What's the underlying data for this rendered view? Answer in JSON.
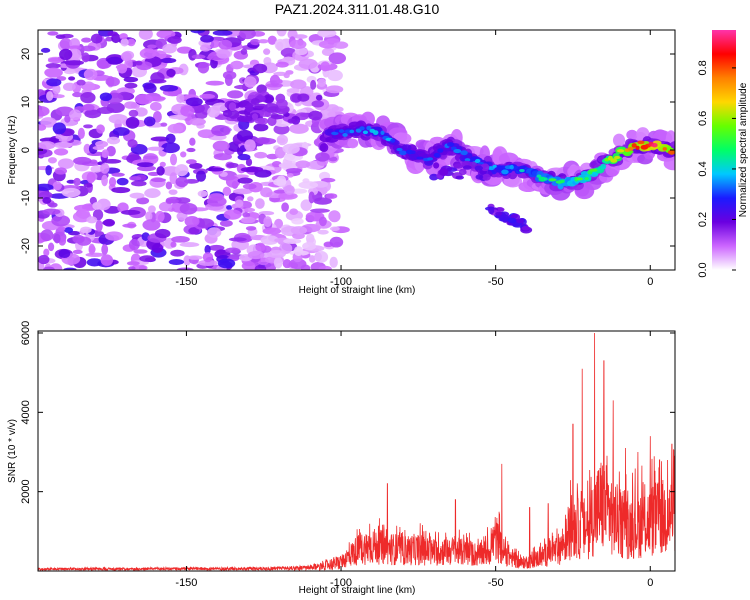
{
  "title": "PAZ1.2024.311.01.48.G10",
  "chart_data": [
    {
      "type": "heatmap",
      "xlabel": "Height of straight line (km)",
      "ylabel": "Frequency (Hz)",
      "xlim": [
        -198,
        8
      ],
      "ylim": [
        -25,
        25
      ],
      "xticks": [
        -150,
        -100,
        -50,
        0
      ],
      "yticks": [
        -20,
        -10,
        0,
        10,
        20
      ],
      "colorbar": {
        "label": "Normalized spectral amplitude",
        "range": [
          0,
          0.95
        ],
        "ticks": [
          0.0,
          0.2,
          0.4,
          0.6,
          0.8
        ],
        "tick_labels": [
          "0.0",
          "0.2",
          "0.4",
          "0.6",
          "0.8"
        ],
        "colormap": [
          "#ffffff",
          "#cc66ff",
          "#6a00e0",
          "#1b1bff",
          "#00c8ff",
          "#00ff66",
          "#66ff00",
          "#ffd700",
          "#ff8000",
          "#ff0000",
          "#ff33aa"
        ]
      },
      "ridge": {
        "description_points": [
          [
            -105,
            3
          ],
          [
            -95,
            4
          ],
          [
            -88,
            4
          ],
          [
            -80,
            0
          ],
          [
            -72,
            -2
          ],
          [
            -65,
            1
          ],
          [
            -58,
            -2
          ],
          [
            -50,
            -4
          ],
          [
            -42,
            -4
          ],
          [
            -35,
            -6
          ],
          [
            -28,
            -7
          ],
          [
            -22,
            -6
          ],
          [
            -15,
            -3
          ],
          [
            -8,
            0
          ],
          [
            -3,
            1
          ],
          [
            2,
            1
          ],
          [
            6,
            0
          ]
        ],
        "amplitude": [
          0.25,
          0.3,
          0.35,
          0.3,
          0.3,
          0.3,
          0.35,
          0.35,
          0.4,
          0.45,
          0.5,
          0.55,
          0.6,
          0.75,
          0.85,
          0.9,
          0.8
        ]
      },
      "secondary_blob": {
        "x": [
          -52,
          -40
        ],
        "y": [
          -12,
          -16
        ]
      },
      "upper_patch": {
        "x": [
          -125,
          -115
        ],
        "y": [
          7,
          10
        ]
      }
    },
    {
      "type": "line",
      "xlabel": "Height of straight line (km)",
      "ylabel": "SNR (10 * v/v)",
      "xlim": [
        -198,
        8
      ],
      "ylim": [
        0,
        6050
      ],
      "xticks": [
        -150,
        -100,
        -50,
        0
      ],
      "yticks": [
        2000,
        4000,
        6000
      ],
      "color": "#ee2a2a",
      "envelope": [
        [
          -198,
          60
        ],
        [
          -160,
          70
        ],
        [
          -130,
          80
        ],
        [
          -110,
          120
        ],
        [
          -100,
          400
        ],
        [
          -95,
          900
        ],
        [
          -90,
          1100
        ],
        [
          -85,
          1000
        ],
        [
          -80,
          900
        ],
        [
          -75,
          950
        ],
        [
          -70,
          800
        ],
        [
          -65,
          900
        ],
        [
          -60,
          800
        ],
        [
          -55,
          700
        ],
        [
          -52,
          900
        ],
        [
          -50,
          1500
        ],
        [
          -48,
          900
        ],
        [
          -45,
          600
        ],
        [
          -42,
          350
        ],
        [
          -38,
          450
        ],
        [
          -34,
          700
        ],
        [
          -30,
          900
        ],
        [
          -27,
          1400
        ],
        [
          -25,
          2100
        ],
        [
          -23,
          1800
        ],
        [
          -20,
          1900
        ],
        [
          -18,
          2500
        ],
        [
          -16,
          2900
        ],
        [
          -14,
          2700
        ],
        [
          -12,
          2400
        ],
        [
          -10,
          2100
        ],
        [
          -8,
          1900
        ],
        [
          -5,
          2000
        ],
        [
          -2,
          2100
        ],
        [
          0,
          2200
        ],
        [
          3,
          2300
        ],
        [
          6,
          2400
        ],
        [
          8,
          2400
        ]
      ],
      "peaks": [
        [
          -85,
          2200
        ],
        [
          -63,
          1800
        ],
        [
          -48,
          2700
        ],
        [
          -39,
          1600
        ],
        [
          -33,
          1700
        ],
        [
          -25,
          3700
        ],
        [
          -22,
          5100
        ],
        [
          -18,
          6000
        ],
        [
          -15,
          5300
        ],
        [
          -12,
          4300
        ],
        [
          -8,
          3100
        ],
        [
          -4,
          3000
        ],
        [
          0,
          3400
        ],
        [
          3,
          2800
        ],
        [
          7,
          3200
        ]
      ]
    }
  ]
}
